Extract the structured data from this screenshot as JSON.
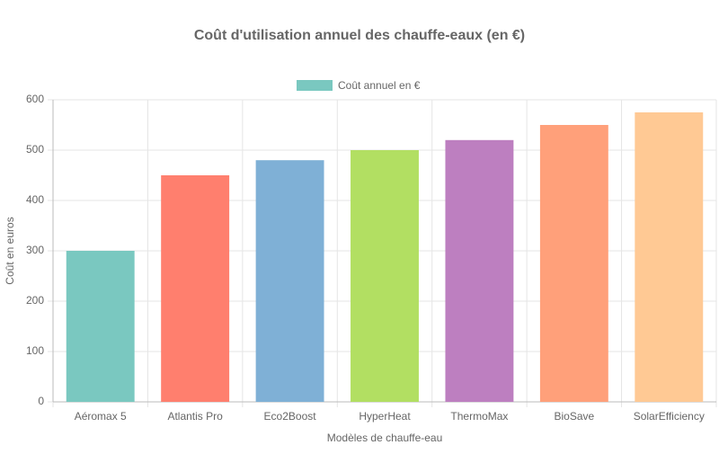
{
  "chart_data": {
    "type": "bar",
    "title": "Coût d'utilisation annuel des chauffe-eaux (en €)",
    "x_label": "Modèles de chauffe-eau",
    "y_label": "Coût en euros",
    "categories": [
      "Aéromax 5",
      "Atlantis Pro",
      "Eco2Boost",
      "HyperHeat",
      "ThermoMax",
      "BioSave",
      "SolarEfficiency"
    ],
    "series": [
      {
        "name": "Coût annuel en €",
        "colors": [
          "#7ac8c0",
          "#ff7f6e",
          "#7fb0d6",
          "#b2df62",
          "#bd7fc0",
          "#ffa07a",
          "#ffc994"
        ],
        "values": [
          300,
          450,
          480,
          500,
          520,
          550,
          575
        ]
      }
    ],
    "ylim": [
      0,
      600
    ],
    "yticks": [
      0,
      100,
      200,
      300,
      400,
      500,
      600
    ],
    "grid": true,
    "legend": "top"
  }
}
